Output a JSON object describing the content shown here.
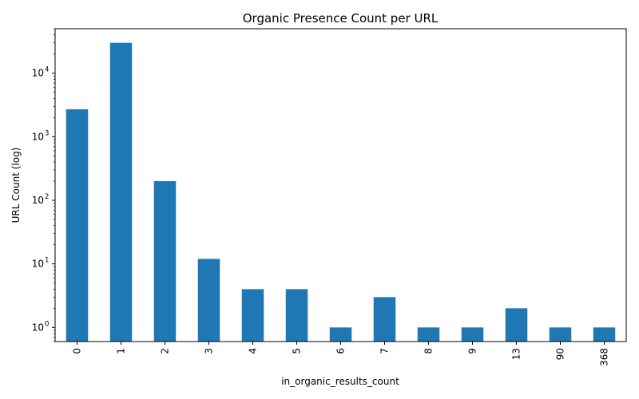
{
  "chart_data": {
    "type": "bar",
    "title": "Organic Presence Count per URL",
    "xlabel": "in_organic_results_count",
    "ylabel": "URL Count (log)",
    "yscale": "log",
    "ylim": [
      0.6,
      50000
    ],
    "categories": [
      "0",
      "1",
      "2",
      "3",
      "4",
      "5",
      "6",
      "7",
      "8",
      "9",
      "13",
      "90",
      "368"
    ],
    "values": [
      2700,
      30000,
      200,
      12,
      4,
      4,
      1,
      3,
      1,
      1,
      2,
      1,
      1
    ],
    "yticks": [
      {
        "value": 1,
        "base": "10",
        "exp": "0"
      },
      {
        "value": 10,
        "base": "10",
        "exp": "1"
      },
      {
        "value": 100,
        "base": "10",
        "exp": "2"
      },
      {
        "value": 1000,
        "base": "10",
        "exp": "3"
      },
      {
        "value": 10000,
        "base": "10",
        "exp": "4"
      }
    ],
    "bar_color": "#1f77b4",
    "grid": false,
    "legend": "none"
  }
}
